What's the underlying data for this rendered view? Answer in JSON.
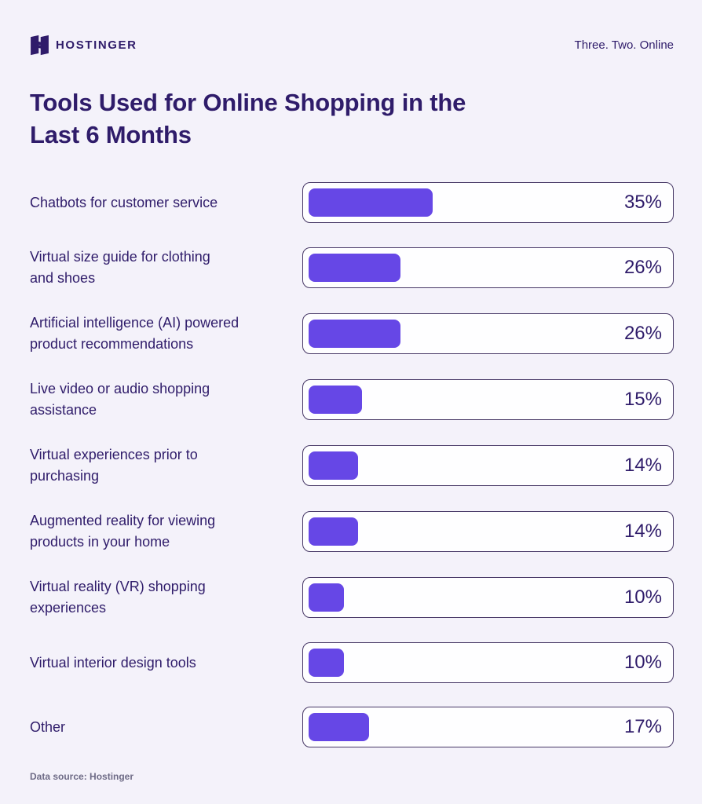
{
  "header": {
    "brand": "HOSTINGER",
    "tagline": "Three. Two. Online"
  },
  "title_lines": [
    "Tools Used for Online Shopping in the",
    "Last 6 Months"
  ],
  "rows": [
    {
      "label_lines": [
        "Chatbots for customer service"
      ],
      "value": 35
    },
    {
      "label_lines": [
        "Virtual size guide for clothing",
        "and shoes"
      ],
      "value": 26
    },
    {
      "label_lines": [
        "Artificial intelligence (AI) powered",
        "product recommendations"
      ],
      "value": 26
    },
    {
      "label_lines": [
        "Live video or audio shopping",
        "assistance"
      ],
      "value": 15
    },
    {
      "label_lines": [
        "Virtual experiences prior to",
        "purchasing"
      ],
      "value": 14
    },
    {
      "label_lines": [
        "Augmented reality for viewing",
        "products in your home"
      ],
      "value": 14
    },
    {
      "label_lines": [
        "Virtual reality (VR) shopping",
        "experiences"
      ],
      "value": 10
    },
    {
      "label_lines": [
        "Virtual interior design tools"
      ],
      "value": 10
    },
    {
      "label_lines": [
        "Other"
      ],
      "value": 17
    }
  ],
  "value_suffix": "%",
  "footer": {
    "source": "Data source: Hostinger"
  },
  "colors": {
    "bg": "#F4F2FA",
    "fill": "#6647E6",
    "text": "#2F1C6A",
    "track_bg": "#FEFEFF",
    "border": "#473866",
    "muted": "#6E6B86"
  },
  "chart_data": {
    "type": "bar",
    "orientation": "horizontal",
    "title": "Tools Used for Online Shopping in the Last 6 Months",
    "categories": [
      "Chatbots for customer service",
      "Virtual size guide for clothing and shoes",
      "Artificial intelligence (AI) powered product recommendations",
      "Live video or audio shopping assistance",
      "Virtual experiences prior to purchasing",
      "Augmented reality for viewing products in your home",
      "Virtual reality (VR) shopping experiences",
      "Virtual interior design tools",
      "Other"
    ],
    "values": [
      35,
      26,
      26,
      15,
      14,
      14,
      10,
      10,
      17
    ],
    "value_unit": "percent",
    "xlabel": "",
    "ylabel": "",
    "xlim": [
      0,
      100
    ],
    "grid": false,
    "legend": false,
    "data_source": "Hostinger"
  }
}
